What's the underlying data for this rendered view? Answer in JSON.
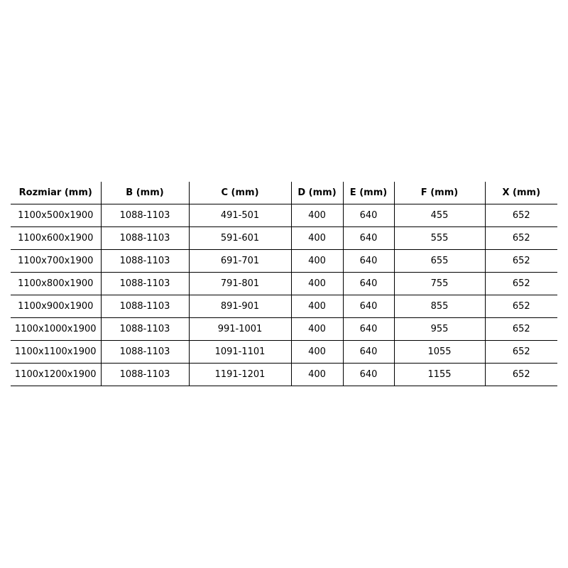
{
  "headers": [
    "Rozmiar (mm)",
    "B (mm)",
    "C (mm)",
    "D (mm)",
    "E (mm)",
    "F (mm)",
    "X (mm)"
  ],
  "rows": [
    [
      "1100x500x1900",
      "1088-1103",
      "491-501",
      "400",
      "640",
      "455",
      "652"
    ],
    [
      "1100x600x1900",
      "1088-1103",
      "591-601",
      "400",
      "640",
      "555",
      "652"
    ],
    [
      "1100x700x1900",
      "1088-1103",
      "691-701",
      "400",
      "640",
      "655",
      "652"
    ],
    [
      "1100x800x1900",
      "1088-1103",
      "791-801",
      "400",
      "640",
      "755",
      "652"
    ],
    [
      "1100x900x1900",
      "1088-1103",
      "891-901",
      "400",
      "640",
      "855",
      "652"
    ],
    [
      "1100x1000x1900",
      "1088-1103",
      "991-1001",
      "400",
      "640",
      "955",
      "652"
    ],
    [
      "1100x1100x1900",
      "1088-1103",
      "1091-1101",
      "400",
      "640",
      "1055",
      "652"
    ],
    [
      "1100x1200x1900",
      "1088-1103",
      "1191-1201",
      "400",
      "640",
      "1155",
      "652"
    ]
  ]
}
